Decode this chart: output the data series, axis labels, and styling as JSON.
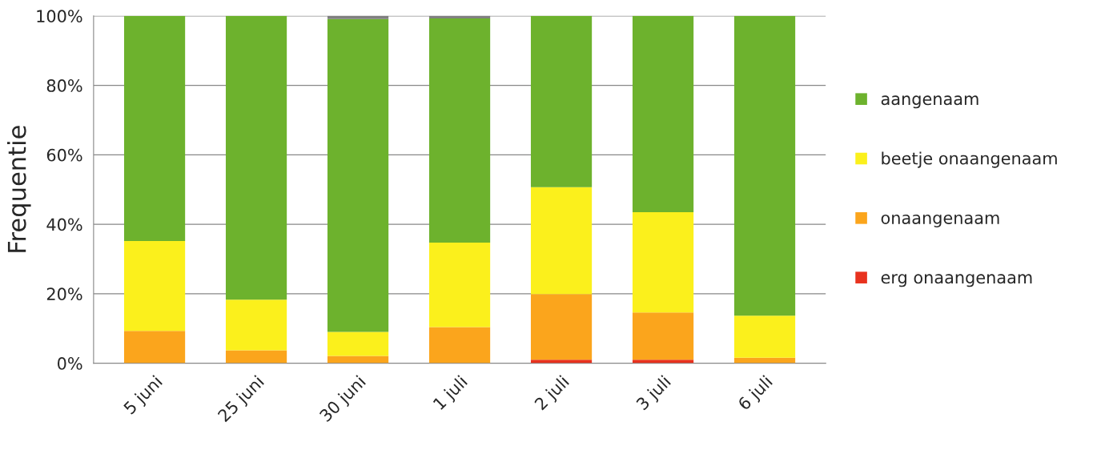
{
  "chart_data": {
    "type": "bar",
    "stacked": true,
    "ylabel": "Frequentie",
    "categories": [
      "5 juni",
      "25 juni",
      "30 juni",
      "1 juli",
      "2 juli",
      "3 juli",
      "6 juli"
    ],
    "series": [
      {
        "name": "erg onaangenaam",
        "color": "#e8321e",
        "values": [
          0,
          0,
          0,
          0,
          1,
          1,
          0
        ]
      },
      {
        "name": "onaangenaam",
        "color": "#fba51c",
        "values": [
          9.3,
          3.7,
          2.1,
          10.4,
          18.9,
          13.6,
          1.6
        ]
      },
      {
        "name": "beetje onaangenaam",
        "color": "#fbf01c",
        "values": [
          25.9,
          14.6,
          6.9,
          24.3,
          30.8,
          28.9,
          12.1
        ]
      },
      {
        "name": "aangenaam",
        "color": "#6db22d",
        "values": [
          64.8,
          81.7,
          90.1,
          64.6,
          49.3,
          56.5,
          86.3
        ]
      },
      {
        "color": "#808080",
        "values": [
          0,
          0,
          0.9,
          0.7,
          0,
          0,
          0
        ]
      }
    ],
    "ylim": [
      0,
      100
    ],
    "yticks": [
      {
        "value": 0,
        "label": "0%"
      },
      {
        "value": 20,
        "label": "20%"
      },
      {
        "value": 40,
        "label": "40%"
      },
      {
        "value": 60,
        "label": "60%"
      },
      {
        "value": 80,
        "label": "80%"
      },
      {
        "value": 100,
        "label": "100%"
      }
    ],
    "grid": "y",
    "legend": "right"
  }
}
